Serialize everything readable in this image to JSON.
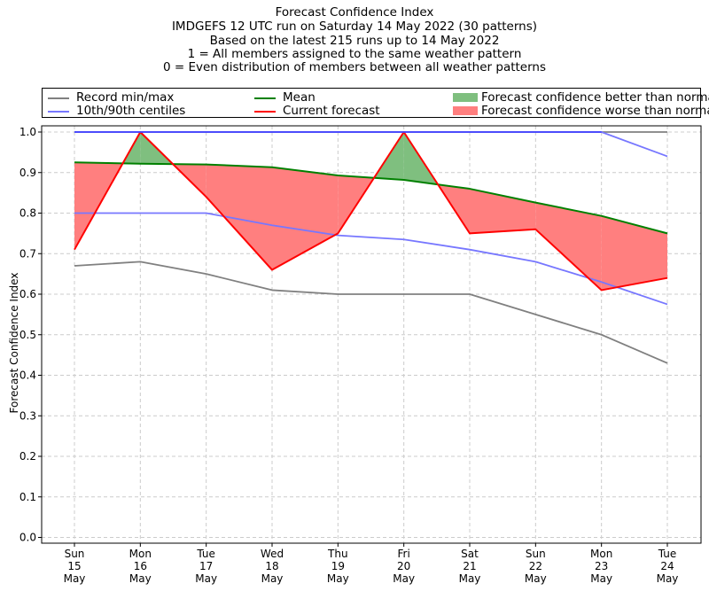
{
  "title": {
    "line1": "Forecast Confidence Index",
    "line2": "IMDGEFS 12 UTC run on Saturday 14 May 2022 (30 patterns)",
    "line3": "Based on the latest 215 runs up to 14 May 2022",
    "line4": "1 = All members assigned to the same weather pattern",
    "line5": "0 = Even distribution of members between all weather patterns"
  },
  "legend": {
    "record": "Record min/max",
    "centiles": "10th/90th centiles",
    "mean": "Mean",
    "current": "Current forecast",
    "better": "Forecast confidence better than normal",
    "worse": "Forecast confidence worse than normal"
  },
  "colors": {
    "record": "#808080",
    "centiles": "#7777ff",
    "max_line": "#4444ff",
    "mean": "#008000",
    "current": "#ff0000",
    "better": "#7fbf7f",
    "worse": "#ff7f7f"
  },
  "chart_data": {
    "type": "line",
    "ylabel": "Forecast Confidence Index",
    "xlabel": "",
    "ylim": [
      0.0,
      1.0
    ],
    "yticks": [
      "0.0",
      "0.1",
      "0.2",
      "0.3",
      "0.4",
      "0.5",
      "0.6",
      "0.7",
      "0.8",
      "0.9",
      "1.0"
    ],
    "grid": true,
    "legend_position": "top",
    "categories": [
      [
        "Sun",
        "15",
        "May"
      ],
      [
        "Mon",
        "16",
        "May"
      ],
      [
        "Tue",
        "17",
        "May"
      ],
      [
        "Wed",
        "18",
        "May"
      ],
      [
        "Thu",
        "19",
        "May"
      ],
      [
        "Fri",
        "20",
        "May"
      ],
      [
        "Sat",
        "21",
        "May"
      ],
      [
        "Sun",
        "22",
        "May"
      ],
      [
        "Mon",
        "23",
        "May"
      ],
      [
        "Tue",
        "24",
        "May"
      ]
    ],
    "series": [
      {
        "name": "Record min/max",
        "key": "record_max",
        "values": [
          1.0,
          1.0,
          1.0,
          1.0,
          1.0,
          1.0,
          1.0,
          1.0,
          1.0,
          1.0
        ]
      },
      {
        "name": "Record min/max",
        "key": "record_min",
        "values": [
          0.67,
          0.68,
          0.65,
          0.61,
          0.6,
          0.6,
          0.6,
          0.55,
          0.5,
          0.43
        ]
      },
      {
        "name": "10th/90th centiles",
        "key": "p90",
        "values": [
          1.0,
          1.0,
          1.0,
          1.0,
          1.0,
          1.0,
          1.0,
          1.0,
          1.0,
          0.94
        ]
      },
      {
        "name": "10th/90th centiles",
        "key": "p10",
        "values": [
          0.8,
          0.8,
          0.8,
          0.77,
          0.745,
          0.735,
          0.71,
          0.68,
          0.63,
          0.575
        ]
      },
      {
        "name": "Mean",
        "key": "mean",
        "values": [
          0.925,
          0.922,
          0.92,
          0.913,
          0.893,
          0.882,
          0.86,
          0.826,
          0.793,
          0.75
        ]
      },
      {
        "name": "Current forecast",
        "key": "current",
        "values": [
          0.71,
          1.0,
          0.84,
          0.66,
          0.75,
          1.0,
          0.75,
          0.76,
          0.61,
          0.64
        ]
      }
    ]
  }
}
